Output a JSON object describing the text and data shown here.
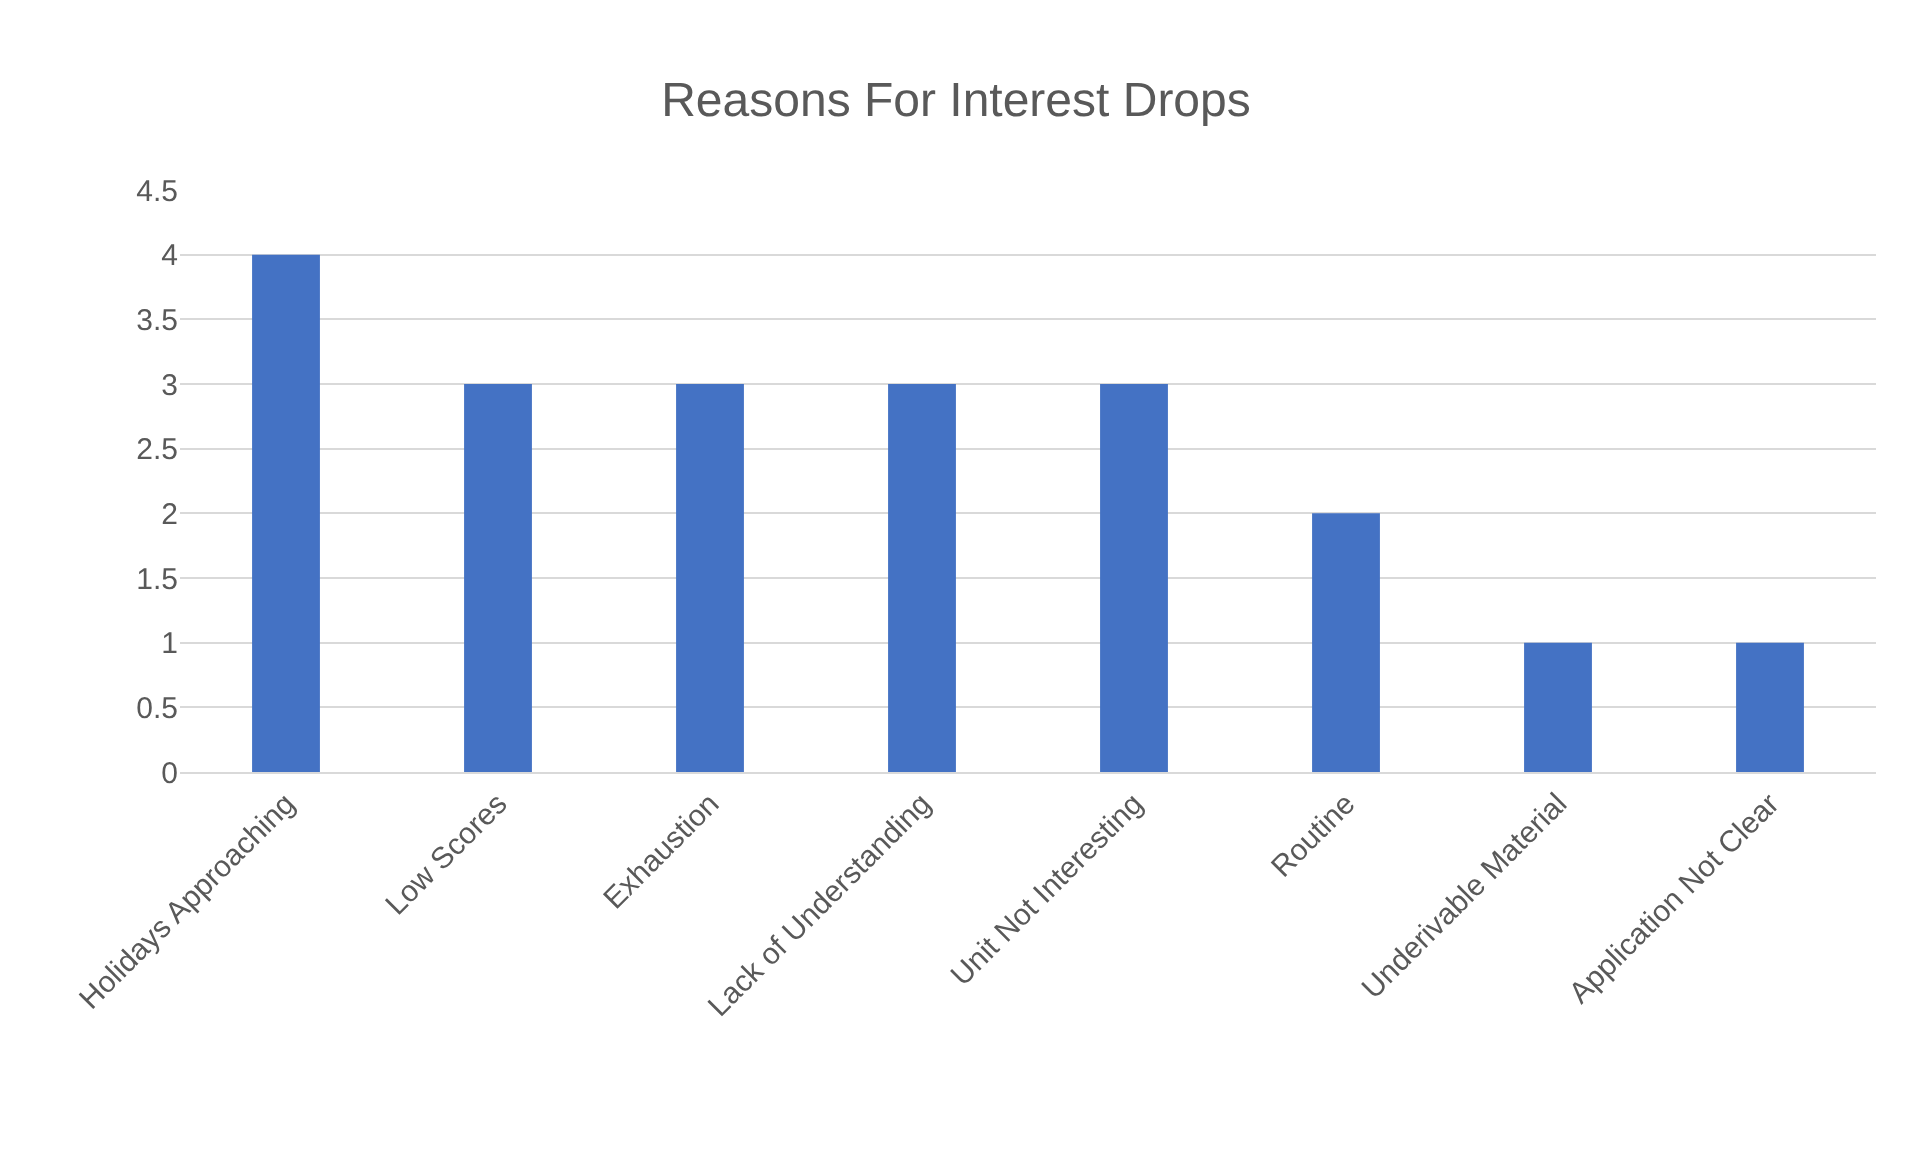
{
  "chart_data": {
    "type": "bar",
    "title": "Reasons For Interest Drops",
    "categories": [
      "Holidays Approaching",
      "Low Scores",
      "Exhaustion",
      "Lack of Understanding",
      "Unit Not Interesting",
      "Routine",
      "Underivable Material",
      "Application Not Clear"
    ],
    "values": [
      4,
      3,
      3,
      3,
      3,
      2,
      1,
      1
    ],
    "color": "#4472c4",
    "ylim": [
      0,
      4.5
    ],
    "yticks": [
      0,
      0.5,
      1,
      1.5,
      2,
      2.5,
      3,
      3.5,
      4,
      4.5
    ],
    "grid": "y"
  }
}
